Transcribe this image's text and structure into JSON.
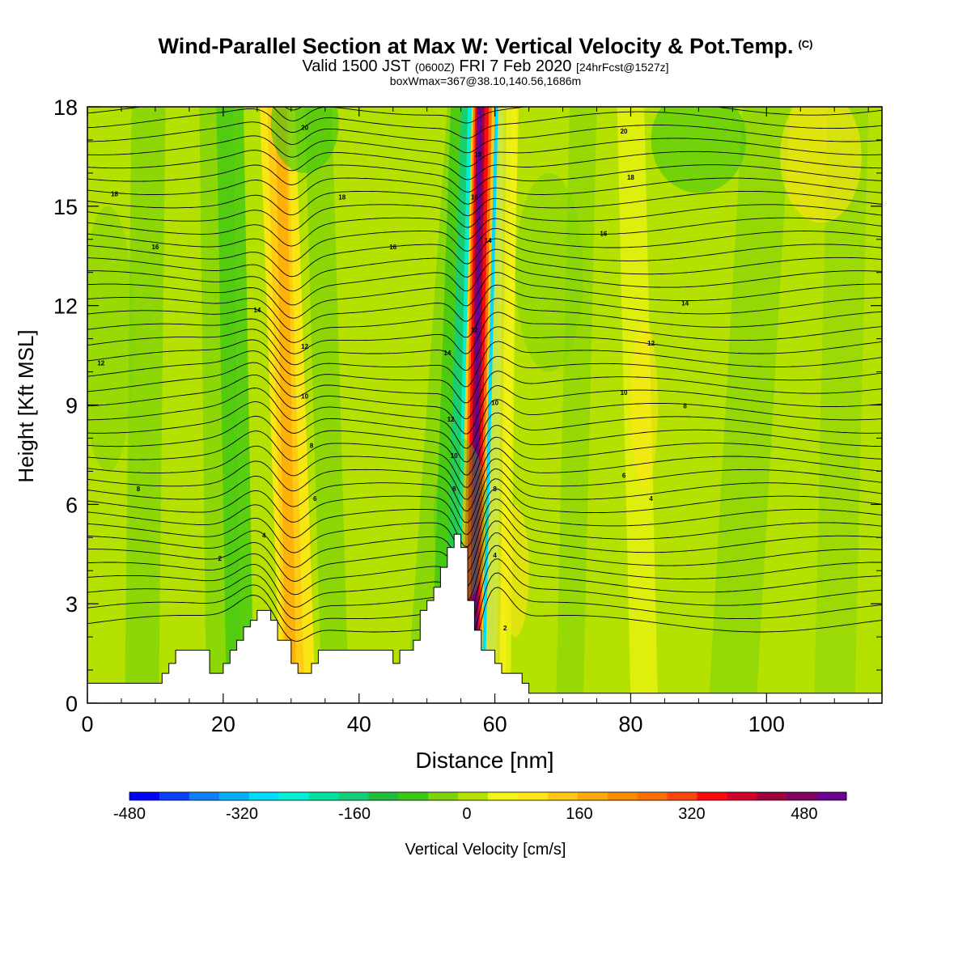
{
  "header": {
    "title": "Wind-Parallel Section at Max W: Vertical Velocity & Pot.Temp.",
    "copyright": "(C)",
    "valid_prefix": "Valid 1500 JST",
    "valid_utc": "(0600Z)",
    "valid_date": "FRI 7 Feb 2020",
    "forecast": "[24hrFcst@1527z]",
    "box_info": "boxWmax=367@38.10,140.56,1686m"
  },
  "chart_data": {
    "type": "heatmap",
    "xlabel": "Distance [nm]",
    "ylabel": "Height [Kft MSL]",
    "xlim": [
      0,
      117
    ],
    "ylim": [
      0,
      18
    ],
    "x_ticks": [
      0,
      20,
      40,
      60,
      80,
      100
    ],
    "y_ticks": [
      0,
      3,
      6,
      9,
      12,
      15,
      18
    ],
    "colorbar": {
      "label": "Vertical Velocity [cm/s]",
      "range": [
        -480,
        540
      ],
      "tick_values": [
        -480,
        -320,
        -160,
        0,
        160,
        320,
        480
      ],
      "colors": [
        "#0000ff",
        "#0a3fff",
        "#0a7fff",
        "#00b0ff",
        "#00dcff",
        "#00f0d8",
        "#00e0a0",
        "#14cf78",
        "#1fbe3c",
        "#3cc814",
        "#7ed30a",
        "#b4e100",
        "#f0f514",
        "#ffe614",
        "#ffc814",
        "#ffaa0a",
        "#ff8c00",
        "#ff6e00",
        "#ff460a",
        "#ff0a0a",
        "#d2002d",
        "#a0003c",
        "#800064",
        "#6a0090"
      ]
    },
    "terrain_kft": [
      [
        0,
        0.6
      ],
      [
        11,
        0.6
      ],
      [
        11,
        0.9
      ],
      [
        12,
        0.9
      ],
      [
        12,
        1.2
      ],
      [
        13,
        1.2
      ],
      [
        13,
        1.6
      ],
      [
        18,
        1.6
      ],
      [
        18,
        0.9
      ],
      [
        20,
        0.9
      ],
      [
        20,
        1.2
      ],
      [
        21,
        1.2
      ],
      [
        21,
        1.6
      ],
      [
        22,
        1.6
      ],
      [
        22,
        1.9
      ],
      [
        23,
        1.9
      ],
      [
        23,
        2.3
      ],
      [
        24,
        2.3
      ],
      [
        24,
        2.5
      ],
      [
        25,
        2.5
      ],
      [
        25,
        2.8
      ],
      [
        27,
        2.8
      ],
      [
        27,
        2.5
      ],
      [
        28,
        2.5
      ],
      [
        28,
        1.9
      ],
      [
        30,
        1.9
      ],
      [
        30,
        1.2
      ],
      [
        31,
        1.2
      ],
      [
        31,
        0.9
      ],
      [
        33,
        0.9
      ],
      [
        33,
        1.2
      ],
      [
        34,
        1.2
      ],
      [
        34,
        1.6
      ],
      [
        45,
        1.6
      ],
      [
        45,
        1.2
      ],
      [
        46,
        1.2
      ],
      [
        46,
        1.6
      ],
      [
        48,
        1.6
      ],
      [
        48,
        1.9
      ],
      [
        49,
        1.9
      ],
      [
        49,
        2.8
      ],
      [
        50,
        2.8
      ],
      [
        50,
        3.1
      ],
      [
        51,
        3.1
      ],
      [
        51,
        3.5
      ],
      [
        52,
        3.5
      ],
      [
        52,
        4.1
      ],
      [
        53,
        4.1
      ],
      [
        53,
        4.7
      ],
      [
        54,
        4.7
      ],
      [
        54,
        5.1
      ],
      [
        55,
        5.1
      ],
      [
        55,
        4.7
      ],
      [
        56,
        4.7
      ],
      [
        56,
        3.1
      ],
      [
        57,
        3.1
      ],
      [
        57,
        2.2
      ],
      [
        58,
        2.2
      ],
      [
        58,
        1.6
      ],
      [
        60,
        1.6
      ],
      [
        60,
        1.2
      ],
      [
        61,
        1.2
      ],
      [
        61,
        0.9
      ],
      [
        64,
        0.9
      ],
      [
        64,
        0.6
      ],
      [
        65,
        0.6
      ],
      [
        65,
        0.3
      ],
      [
        117,
        0.3
      ]
    ],
    "updraft_bands": [
      {
        "name": "main-updraft",
        "x_bottom": 56,
        "x_top": 58,
        "peak_cm_s": 540
      },
      {
        "name": "secondary-updraft",
        "x_bottom": 30.5,
        "x_top": 27.5,
        "peak_cm_s": 200
      }
    ],
    "downdraft_bands": [
      {
        "name": "main-downdraft",
        "x_bottom": 54,
        "x_top": 60,
        "peak_cm_s": -320
      }
    ],
    "contour_labels": [
      {
        "text": "20",
        "x": 32,
        "y": 17.3
      },
      {
        "text": "20",
        "x": 79,
        "y": 17.2
      },
      {
        "text": "18",
        "x": 4,
        "y": 15.3
      },
      {
        "text": "18",
        "x": 37.5,
        "y": 15.2
      },
      {
        "text": "18",
        "x": 57.5,
        "y": 16.5
      },
      {
        "text": "18",
        "x": 80,
        "y": 15.8
      },
      {
        "text": "16",
        "x": 57,
        "y": 15.2
      },
      {
        "text": "16",
        "x": 10,
        "y": 13.7
      },
      {
        "text": "16",
        "x": 45,
        "y": 13.7
      },
      {
        "text": "16",
        "x": 76,
        "y": 14.1
      },
      {
        "text": "14",
        "x": 59,
        "y": 13.9
      },
      {
        "text": "14",
        "x": 25,
        "y": 11.8
      },
      {
        "text": "14",
        "x": 88,
        "y": 12.0
      },
      {
        "text": "14",
        "x": 53,
        "y": 10.5
      },
      {
        "text": "12",
        "x": 2,
        "y": 10.2
      },
      {
        "text": "12",
        "x": 32,
        "y": 10.7
      },
      {
        "text": "12",
        "x": 57,
        "y": 11.2
      },
      {
        "text": "12",
        "x": 83,
        "y": 10.8
      },
      {
        "text": "12",
        "x": 53.5,
        "y": 8.5
      },
      {
        "text": "10",
        "x": 32,
        "y": 9.2
      },
      {
        "text": "10",
        "x": 60,
        "y": 9.0
      },
      {
        "text": "10",
        "x": 79,
        "y": 9.3
      },
      {
        "text": "10",
        "x": 54,
        "y": 7.4
      },
      {
        "text": "8",
        "x": 33,
        "y": 7.7
      },
      {
        "text": "8",
        "x": 88,
        "y": 8.9
      },
      {
        "text": "8",
        "x": 7.5,
        "y": 6.4
      },
      {
        "text": "8",
        "x": 54,
        "y": 6.4
      },
      {
        "text": "8",
        "x": 60,
        "y": 6.4
      },
      {
        "text": "6",
        "x": 33.5,
        "y": 6.1
      },
      {
        "text": "6",
        "x": 79,
        "y": 6.8
      },
      {
        "text": "4",
        "x": 26,
        "y": 5.0
      },
      {
        "text": "4",
        "x": 83,
        "y": 6.1
      },
      {
        "text": "4",
        "x": 60,
        "y": 4.4
      },
      {
        "text": "2",
        "x": 19.5,
        "y": 4.3
      },
      {
        "text": "2",
        "x": 61.5,
        "y": 2.2
      }
    ]
  }
}
